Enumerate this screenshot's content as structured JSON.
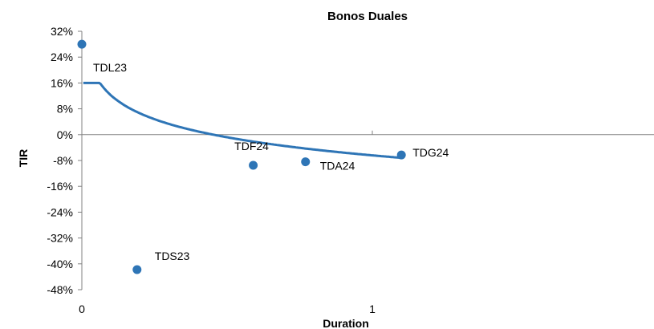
{
  "chart_data": {
    "type": "scatter",
    "title": "Bonos Duales",
    "xlabel": "Duration",
    "ylabel": "TIR",
    "xlim": [
      0,
      2
    ],
    "ylim": [
      -48,
      32
    ],
    "x_ticks": [
      0,
      1
    ],
    "x_tick_labels": [
      "0",
      "1"
    ],
    "y_ticks": [
      32,
      24,
      16,
      8,
      0,
      -8,
      -16,
      -24,
      -32,
      -40,
      -48
    ],
    "y_tick_labels": [
      "32%",
      "24%",
      "16%",
      "8%",
      "0%",
      "-8%",
      "-16%",
      "-24%",
      "-32%",
      "-40%",
      "-48%"
    ],
    "grid": false,
    "legend": false,
    "colors": {
      "point": "#2e75b6",
      "trend": "#2e75b6",
      "axis": "#808080"
    },
    "points": [
      {
        "label": "TDL23",
        "x": 0.0,
        "y": 28.0
      },
      {
        "label": "TDS23",
        "x": 0.19,
        "y": -41.8
      },
      {
        "label": "TDF24",
        "x": 0.59,
        "y": -9.5
      },
      {
        "label": "TDA24",
        "x": 0.77,
        "y": -8.4
      },
      {
        "label": "TDG24",
        "x": 1.1,
        "y": -6.3
      }
    ],
    "trendline": {
      "type": "logarithmic",
      "x_range": [
        0.005,
        1.1
      ],
      "equation": {
        "a": 0.0808,
        "b": -0.0641
      }
    }
  }
}
